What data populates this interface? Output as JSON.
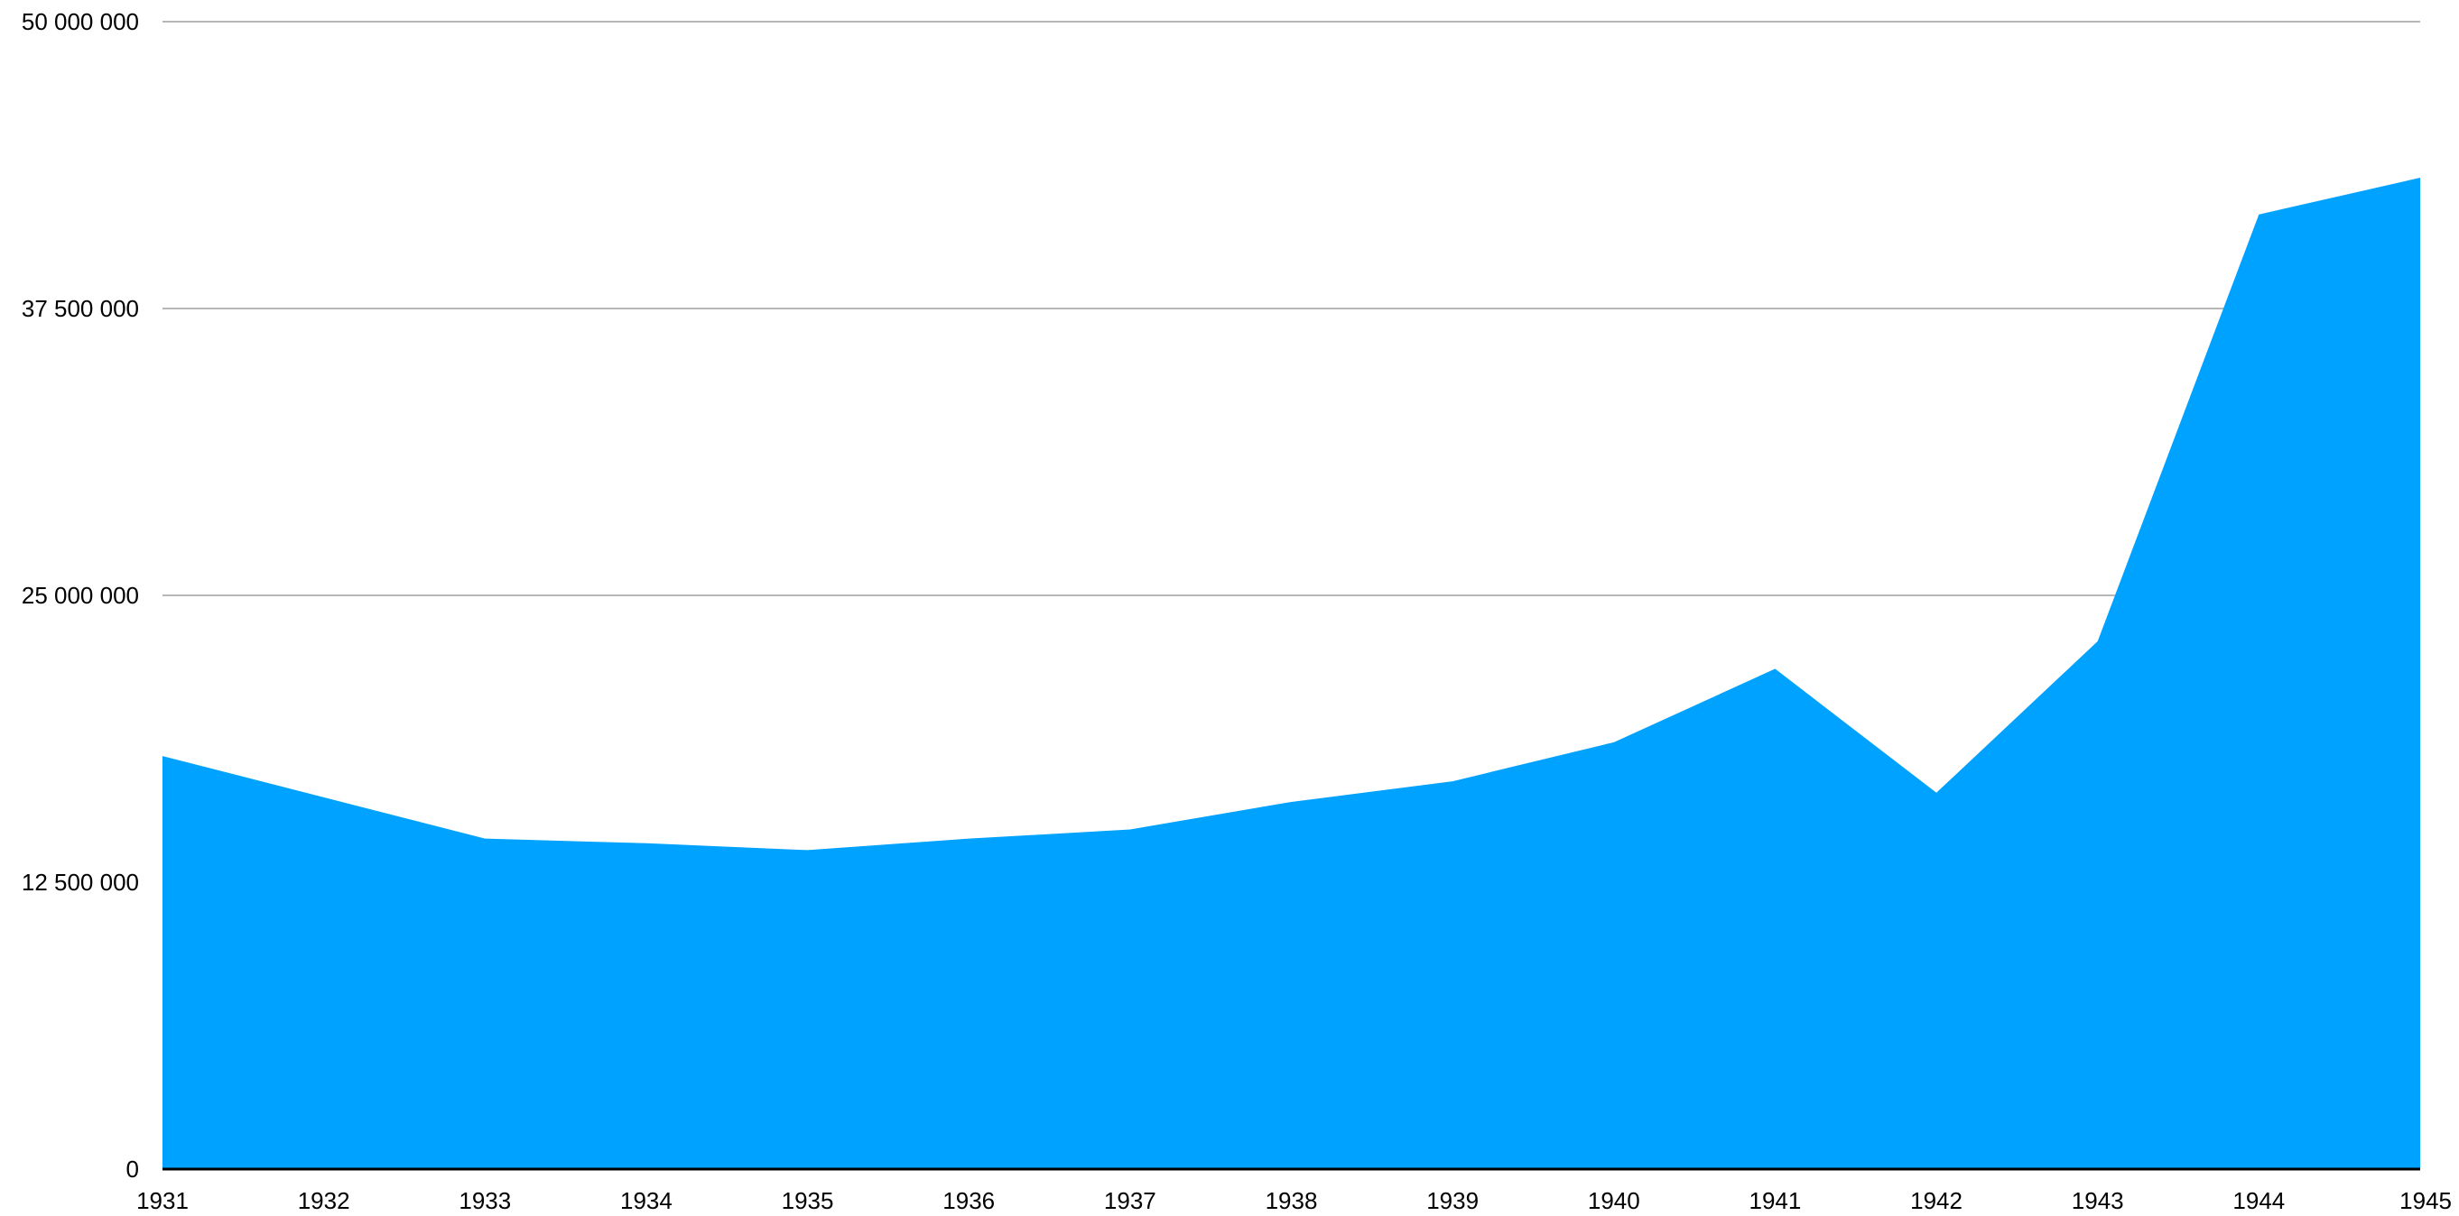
{
  "chart_data": {
    "type": "area",
    "title": "",
    "xlabel": "",
    "ylabel": "",
    "x": [
      "1931",
      "1932",
      "1933",
      "1934",
      "1935",
      "1936",
      "1937",
      "1938",
      "1939",
      "1940",
      "1941",
      "1942",
      "1943",
      "1944",
      "1945"
    ],
    "series": [
      {
        "values": [
          18000000,
          16200000,
          14400000,
          14200000,
          13900000,
          14400000,
          14800000,
          16000000,
          16900000,
          18600000,
          21800000,
          16400000,
          23000000,
          41600000,
          43200000
        ]
      }
    ],
    "ylim": [
      0,
      50000000
    ],
    "yticks": [
      {
        "value": 0,
        "label": "0"
      },
      {
        "value": 12500000,
        "label": "12 500 000"
      },
      {
        "value": 25000000,
        "label": "25 000 000"
      },
      {
        "value": 37500000,
        "label": "37 500 000"
      },
      {
        "value": 50000000,
        "label": "50 000 000"
      }
    ],
    "grid": true,
    "legend": "none",
    "colors": {
      "area_fill": "#00a2ff",
      "gridline": "#b7b7b7",
      "baseline": "#000000",
      "text": "#000000"
    }
  }
}
